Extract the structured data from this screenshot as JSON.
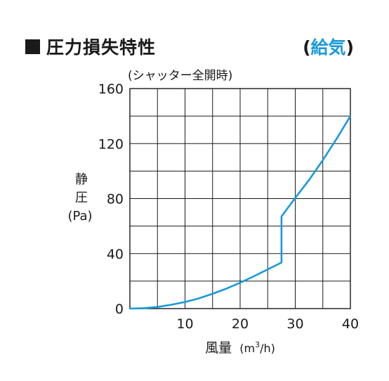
{
  "header": {
    "title": "圧力損失特性",
    "tag_open": "(",
    "tag_text": "給気",
    "tag_close": ")"
  },
  "colors": {
    "accent": "#1a9ad8",
    "ink": "#1a1a1a",
    "tag": "#1a9ad8"
  },
  "icons": {
    "title_marker": "black-square"
  },
  "chart_data": {
    "type": "line",
    "annotation": "(シャッター全開時)",
    "ylabel_lines": [
      "静",
      "圧",
      "(Pa)"
    ],
    "xlabel_main": "風量",
    "xlabel_unit_prefix": "(m",
    "xlabel_unit_sup": "3",
    "xlabel_unit_suffix": "/h)",
    "xlim": [
      0,
      40
    ],
    "ylim": [
      0,
      160
    ],
    "xticks": [
      0,
      10,
      20,
      30,
      40
    ],
    "xtick_labels": [
      "",
      "10",
      "20",
      "30",
      "40"
    ],
    "yticks": [
      0,
      40,
      80,
      120,
      160
    ],
    "ytick_labels": [
      "0",
      "40",
      "80",
      "120",
      "160"
    ],
    "grid": {
      "x_step": 5,
      "y_step": 20,
      "on": true
    },
    "series": [
      {
        "x": [
          0,
          2.5,
          5,
          7.5,
          10,
          12.5,
          15,
          17.5,
          20,
          22.5,
          25,
          27.5,
          27.5,
          30,
          32.5,
          35,
          37.5,
          40
        ],
        "y": [
          0,
          0.3,
          1.2,
          2.8,
          4.8,
          7.4,
          10.8,
          14.5,
          18.8,
          23.5,
          28.5,
          33.5,
          67,
          80.5,
          93.5,
          108,
          123.5,
          140
        ]
      }
    ]
  }
}
